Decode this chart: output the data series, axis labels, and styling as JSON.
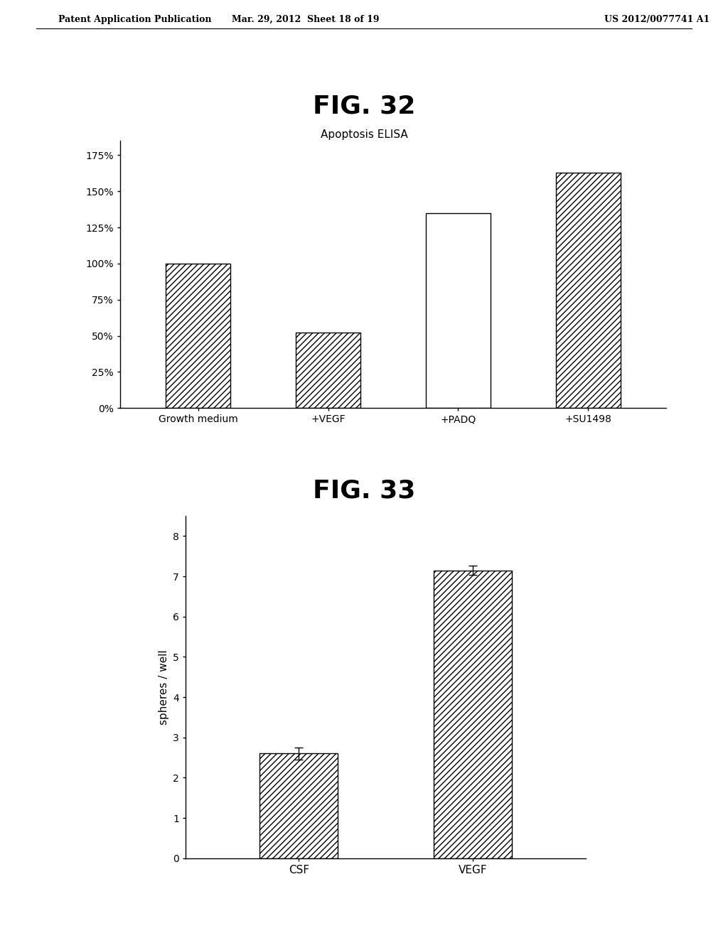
{
  "fig32_title": "FIG. 32",
  "fig32_subtitle": "Apoptosis ELISA",
  "fig32_categories": [
    "Growth medium",
    "+VEGF",
    "+PADQ",
    "+SU1498"
  ],
  "fig32_values": [
    100,
    52,
    135,
    163
  ],
  "fig32_hatched": [
    true,
    true,
    false,
    true
  ],
  "fig32_yticks": [
    0,
    25,
    50,
    75,
    100,
    125,
    150,
    175
  ],
  "fig32_ytick_labels": [
    "0%",
    "25%",
    "50%",
    "75%",
    "100%",
    "125%",
    "150%",
    "175%"
  ],
  "fig32_ylim": [
    0,
    185
  ],
  "fig33_title": "FIG. 33",
  "fig33_categories": [
    "CSF",
    "VEGF"
  ],
  "fig33_values": [
    2.6,
    7.15
  ],
  "fig33_errors": [
    0.15,
    0.12
  ],
  "fig33_ylabel": "spheres / well",
  "fig33_yticks": [
    0,
    1,
    2,
    3,
    4,
    5,
    6,
    7,
    8
  ],
  "fig33_ylim": [
    0,
    8.5
  ],
  "header_left": "Patent Application Publication",
  "header_center": "Mar. 29, 2012  Sheet 18 of 19",
  "header_right": "US 2012/0077741 A1",
  "bg_color": "#ffffff",
  "bar_edge_color": "#000000",
  "hatch_pattern": "////",
  "bar_facecolor": "#ffffff",
  "fig_title_fontsize": 26,
  "subtitle_fontsize": 11,
  "tick_fontsize": 10,
  "label_fontsize": 11,
  "header_fontsize": 9
}
